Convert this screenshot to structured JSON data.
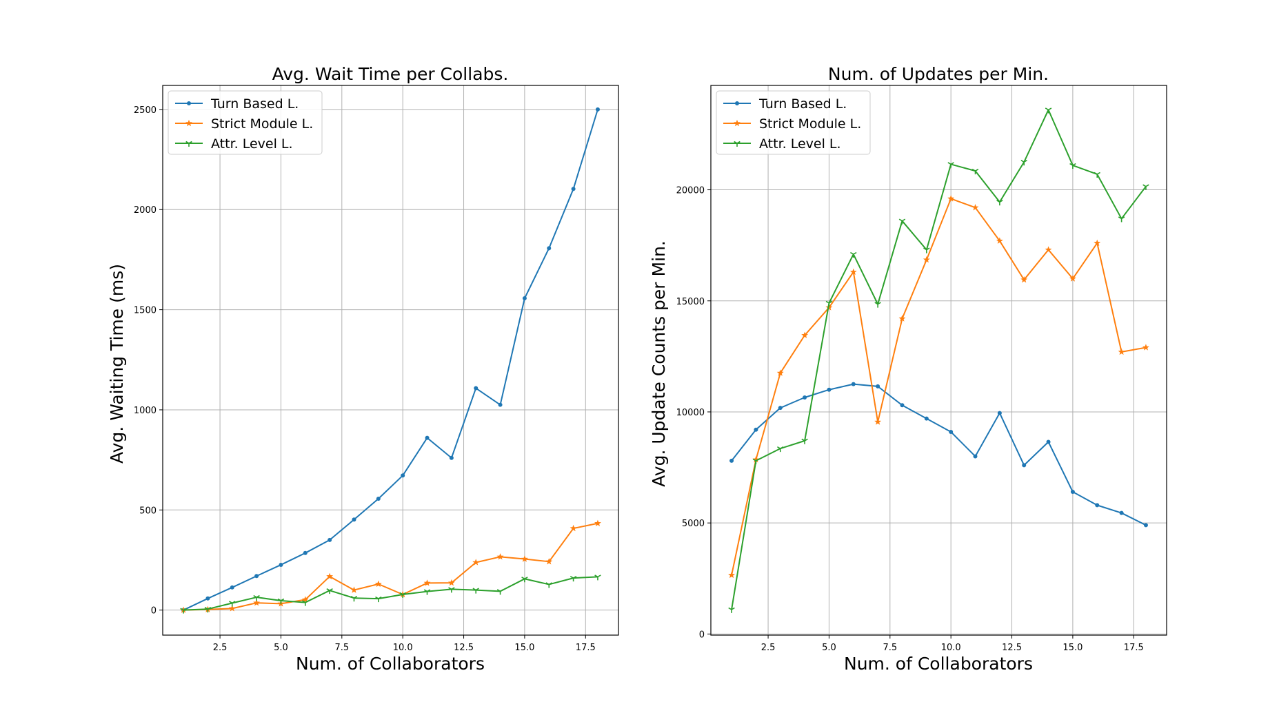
{
  "chart_data": [
    {
      "type": "line",
      "title": "Avg. Wait Time per Collabs.",
      "xlabel": "Num. of Collaborators",
      "ylabel": "Avg. Waiting Time (ms)",
      "xlim": [
        0.15,
        18.85
      ],
      "ylim": [
        -125,
        2620
      ],
      "xticks": [
        2.5,
        5.0,
        7.5,
        10.0,
        12.5,
        15.0,
        17.5
      ],
      "xtick_labels": [
        "2.5",
        "5.0",
        "7.5",
        "10.0",
        "12.5",
        "15.0",
        "17.5"
      ],
      "yticks": [
        0,
        500,
        1000,
        1500,
        2000,
        2500
      ],
      "ytick_labels": [
        "0",
        "500",
        "1000",
        "1500",
        "2000",
        "2500"
      ],
      "grid": true,
      "legend_position": "top-left",
      "x": [
        1,
        2,
        3,
        4,
        5,
        6,
        7,
        8,
        9,
        10,
        11,
        12,
        13,
        14,
        15,
        16,
        17,
        18
      ],
      "series": [
        {
          "name": "Turn Based L.",
          "color": "#1f77b4",
          "marker": "point",
          "values": [
            0,
            58,
            113,
            170,
            226,
            285,
            350,
            452,
            556,
            672,
            860,
            760,
            1108,
            1025,
            1557,
            1807,
            2103,
            2500
          ]
        },
        {
          "name": "Strict Module L.",
          "color": "#ff7f0e",
          "marker": "star",
          "values": [
            0,
            3,
            8,
            36,
            32,
            52,
            168,
            100,
            130,
            78,
            135,
            136,
            238,
            266,
            255,
            242,
            408,
            433
          ]
        },
        {
          "name": "Attr. Level L.",
          "color": "#2ca02c",
          "marker": "tri",
          "values": [
            0,
            5,
            35,
            64,
            47,
            38,
            98,
            60,
            57,
            78,
            93,
            104,
            100,
            94,
            156,
            128,
            160,
            166
          ]
        }
      ]
    },
    {
      "type": "line",
      "title": "Num. of Updates per Min.",
      "xlabel": "Num. of Collaborators",
      "ylabel": "Avg. Update Counts per Min.",
      "xlim": [
        0.15,
        18.85
      ],
      "ylim": [
        -50,
        24700
      ],
      "xticks": [
        2.5,
        5.0,
        7.5,
        10.0,
        12.5,
        15.0,
        17.5
      ],
      "xtick_labels": [
        "2.5",
        "5.0",
        "7.5",
        "10.0",
        "12.5",
        "15.0",
        "17.5"
      ],
      "yticks": [
        0,
        5000,
        10000,
        15000,
        20000
      ],
      "ytick_labels": [
        "0",
        "5000",
        "10000",
        "15000",
        "20000"
      ],
      "grid": true,
      "legend_position": "top-left",
      "x": [
        1,
        2,
        3,
        4,
        5,
        6,
        7,
        8,
        9,
        10,
        11,
        12,
        13,
        14,
        15,
        16,
        17,
        18
      ],
      "series": [
        {
          "name": "Turn Based L.",
          "color": "#1f77b4",
          "marker": "point",
          "values": [
            7800,
            9200,
            10180,
            10650,
            11000,
            11250,
            11150,
            10300,
            9700,
            9100,
            8000,
            9950,
            7600,
            8650,
            6400,
            5800,
            5450,
            4900
          ]
        },
        {
          "name": "Strict Module L.",
          "color": "#ff7f0e",
          "marker": "star",
          "values": [
            2650,
            7850,
            11750,
            13450,
            14700,
            16300,
            9550,
            14200,
            16850,
            19600,
            19200,
            17700,
            15950,
            17300,
            16000,
            17600,
            12700,
            12900
          ]
        },
        {
          "name": "Attr. Level L.",
          "color": "#2ca02c",
          "marker": "tri",
          "values": [
            1100,
            7800,
            8350,
            8700,
            14900,
            17100,
            14850,
            18600,
            17300,
            21150,
            20850,
            19450,
            21250,
            23600,
            21100,
            20700,
            18700,
            20150
          ]
        }
      ]
    }
  ]
}
